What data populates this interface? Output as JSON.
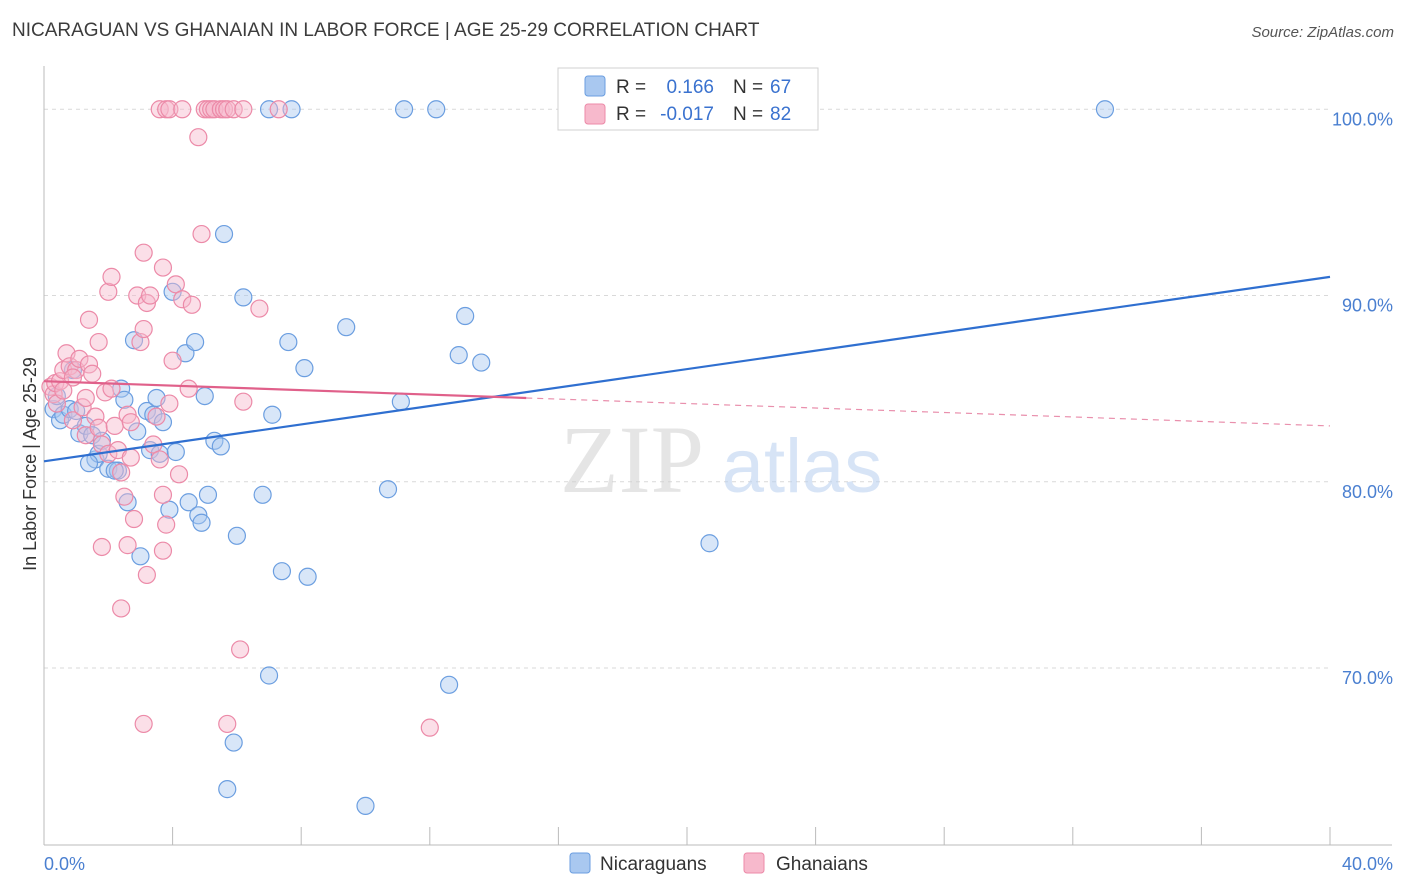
{
  "title": "NICARAGUAN VS GHANAIAN IN LABOR FORCE | AGE 25-29 CORRELATION CHART",
  "source": "Source: ZipAtlas.com",
  "colors": {
    "blue_fill": "#a9c8f0",
    "blue_stroke": "#6b9ee0",
    "blue_line": "#2f6fd0",
    "pink_fill": "#f7b9cc",
    "pink_stroke": "#ec8aa8",
    "pink_line": "#e0608a",
    "grid": "#d9d9d9",
    "tick_text": "#4a7fd0"
  },
  "legend": {
    "rows": [
      {
        "r_label": "R =",
        "r_value": "0.166",
        "n_label": "N =",
        "n_value": "67"
      },
      {
        "r_label": "R =",
        "r_value": "-0.017",
        "n_label": "N =",
        "n_value": "82"
      }
    ]
  },
  "watermark": {
    "zip": "ZIP",
    "atlas": "atlas"
  },
  "chart_data": {
    "type": "scatter",
    "title": "NICARAGUAN VS GHANAIAN IN LABOR FORCE | AGE 25-29 CORRELATION CHART",
    "xlabel": "",
    "ylabel": "In Labor Force | Age 25-29",
    "xlim": [
      0,
      40
    ],
    "ylim": [
      60.5,
      102
    ],
    "x_tick_labels": [
      "0.0%",
      "40.0%"
    ],
    "y_ticks": [
      70,
      80,
      90,
      100
    ],
    "y_tick_labels": [
      "70.0%",
      "80.0%",
      "90.0%",
      "100.0%"
    ],
    "grid": true,
    "legend_position": "top-center",
    "series": [
      {
        "name": "Nicaraguans",
        "r": 0.166,
        "n": 67,
        "trend": {
          "x": [
            0,
            40
          ],
          "y": [
            81.1,
            91.0
          ],
          "dashed_from": null
        },
        "points": [
          [
            0.3,
            83.9
          ],
          [
            0.4,
            84.6
          ],
          [
            0.5,
            83.3
          ],
          [
            0.6,
            83.6
          ],
          [
            0.8,
            83.9
          ],
          [
            0.9,
            86.0
          ],
          [
            1.0,
            83.8
          ],
          [
            1.1,
            82.6
          ],
          [
            1.3,
            83.0
          ],
          [
            1.5,
            82.5
          ],
          [
            1.6,
            81.2
          ],
          [
            1.7,
            81.5
          ],
          [
            1.8,
            82.2
          ],
          [
            2.0,
            80.7
          ],
          [
            2.3,
            80.6
          ],
          [
            2.4,
            85.0
          ],
          [
            2.5,
            84.4
          ],
          [
            2.6,
            78.9
          ],
          [
            2.8,
            87.6
          ],
          [
            2.9,
            82.7
          ],
          [
            3.0,
            76.0
          ],
          [
            3.2,
            83.8
          ],
          [
            3.3,
            81.7
          ],
          [
            3.4,
            83.6
          ],
          [
            3.5,
            84.5
          ],
          [
            3.6,
            81.5
          ],
          [
            3.7,
            83.2
          ],
          [
            3.9,
            78.5
          ],
          [
            4.0,
            90.2
          ],
          [
            4.1,
            81.6
          ],
          [
            4.4,
            86.9
          ],
          [
            4.5,
            78.9
          ],
          [
            4.7,
            87.5
          ],
          [
            4.8,
            78.2
          ],
          [
            4.9,
            77.8
          ],
          [
            5.0,
            84.6
          ],
          [
            5.1,
            79.3
          ],
          [
            5.3,
            82.2
          ],
          [
            5.5,
            81.9
          ],
          [
            5.6,
            93.3
          ],
          [
            5.7,
            63.5
          ],
          [
            5.9,
            66.0
          ],
          [
            6.0,
            77.1
          ],
          [
            6.2,
            89.9
          ],
          [
            6.8,
            79.3
          ],
          [
            7.0,
            69.6
          ],
          [
            7.1,
            83.6
          ],
          [
            7.4,
            75.2
          ],
          [
            7.6,
            87.5
          ],
          [
            8.1,
            86.1
          ],
          [
            8.2,
            74.9
          ],
          [
            9.4,
            88.3
          ],
          [
            10.0,
            62.6
          ],
          [
            10.7,
            79.6
          ],
          [
            11.1,
            84.3
          ],
          [
            12.6,
            69.1
          ],
          [
            12.9,
            86.8
          ],
          [
            13.1,
            88.9
          ],
          [
            13.6,
            86.4
          ],
          [
            20.7,
            76.7
          ],
          [
            7.0,
            100.0
          ],
          [
            7.7,
            100.0
          ],
          [
            11.2,
            100.0
          ],
          [
            12.2,
            100.0
          ],
          [
            33.0,
            100.0
          ],
          [
            1.4,
            81.0
          ],
          [
            2.2,
            80.6
          ]
        ]
      },
      {
        "name": "Ghanaians",
        "r": -0.017,
        "n": 82,
        "trend": {
          "x": [
            0,
            40
          ],
          "y": [
            85.4,
            83.0
          ],
          "dashed_from": 15.0
        },
        "points": [
          [
            0.2,
            85.1
          ],
          [
            0.3,
            84.7
          ],
          [
            0.35,
            85.3
          ],
          [
            0.4,
            84.2
          ],
          [
            0.5,
            85.4
          ],
          [
            0.6,
            86.0
          ],
          [
            0.7,
            86.9
          ],
          [
            0.8,
            86.2
          ],
          [
            0.9,
            83.3
          ],
          [
            1.0,
            86.0
          ],
          [
            1.1,
            86.6
          ],
          [
            1.2,
            84.0
          ],
          [
            1.3,
            82.5
          ],
          [
            1.4,
            86.3
          ],
          [
            1.5,
            85.8
          ],
          [
            1.6,
            83.5
          ],
          [
            1.7,
            82.9
          ],
          [
            1.8,
            82.0
          ],
          [
            1.9,
            84.8
          ],
          [
            2.0,
            81.5
          ],
          [
            2.1,
            85.0
          ],
          [
            2.2,
            83.0
          ],
          [
            2.3,
            81.7
          ],
          [
            2.4,
            80.5
          ],
          [
            2.5,
            79.2
          ],
          [
            2.6,
            83.6
          ],
          [
            2.7,
            81.3
          ],
          [
            2.8,
            78.0
          ],
          [
            2.9,
            90.0
          ],
          [
            3.0,
            87.5
          ],
          [
            3.1,
            88.2
          ],
          [
            3.2,
            89.6
          ],
          [
            3.3,
            90.0
          ],
          [
            3.4,
            82.0
          ],
          [
            3.5,
            83.5
          ],
          [
            3.6,
            81.2
          ],
          [
            3.7,
            79.3
          ],
          [
            3.8,
            77.7
          ],
          [
            3.9,
            84.2
          ],
          [
            4.0,
            86.5
          ],
          [
            4.1,
            90.6
          ],
          [
            4.2,
            80.4
          ],
          [
            4.3,
            89.8
          ],
          [
            4.5,
            85.0
          ],
          [
            4.6,
            89.5
          ],
          [
            1.7,
            87.5
          ],
          [
            2.0,
            90.2
          ],
          [
            2.1,
            91.0
          ],
          [
            1.4,
            88.7
          ],
          [
            3.1,
            92.3
          ],
          [
            3.7,
            91.5
          ],
          [
            4.9,
            93.3
          ],
          [
            1.8,
            76.5
          ],
          [
            2.6,
            76.6
          ],
          [
            3.2,
            75.0
          ],
          [
            3.7,
            76.3
          ],
          [
            2.4,
            73.2
          ],
          [
            6.1,
            71.0
          ],
          [
            3.1,
            67.0
          ],
          [
            5.7,
            67.0
          ],
          [
            12.0,
            66.8
          ],
          [
            4.8,
            98.5
          ],
          [
            3.6,
            100.0
          ],
          [
            3.8,
            100.0
          ],
          [
            3.9,
            100.0
          ],
          [
            5.0,
            100.0
          ],
          [
            5.1,
            100.0
          ],
          [
            5.2,
            100.0
          ],
          [
            5.3,
            100.0
          ],
          [
            5.5,
            100.0
          ],
          [
            5.6,
            100.0
          ],
          [
            5.7,
            100.0
          ],
          [
            5.9,
            100.0
          ],
          [
            6.2,
            100.0
          ],
          [
            7.3,
            100.0
          ],
          [
            4.3,
            100.0
          ],
          [
            6.7,
            89.3
          ],
          [
            1.3,
            84.5
          ],
          [
            0.9,
            85.6
          ],
          [
            0.6,
            84.9
          ],
          [
            2.7,
            83.2
          ],
          [
            6.2,
            84.3
          ]
        ]
      }
    ]
  }
}
